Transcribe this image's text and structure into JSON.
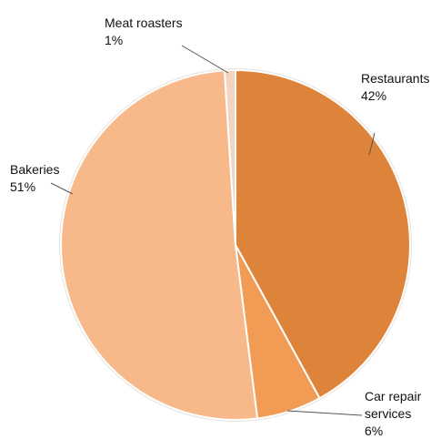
{
  "chart_data": {
    "type": "pie",
    "title": "",
    "slices": [
      {
        "name": "Restaurants",
        "value": 42,
        "label_value": "42%",
        "color": "#de843a"
      },
      {
        "name": "Car repair services",
        "label_lines": [
          "Car repair",
          "services"
        ],
        "value": 6,
        "label_value": "6%",
        "color": "#f19b54"
      },
      {
        "name": "Bakeries",
        "value": 51,
        "label_value": "51%",
        "color": "#f8b98a"
      },
      {
        "name": "Meat roasters",
        "value": 1,
        "label_value": "1%",
        "color": "#f6d3bf"
      }
    ],
    "start_angle_deg": 0,
    "direction": "clockwise",
    "legend": "none",
    "labels": "outside-with-leader-lines"
  }
}
